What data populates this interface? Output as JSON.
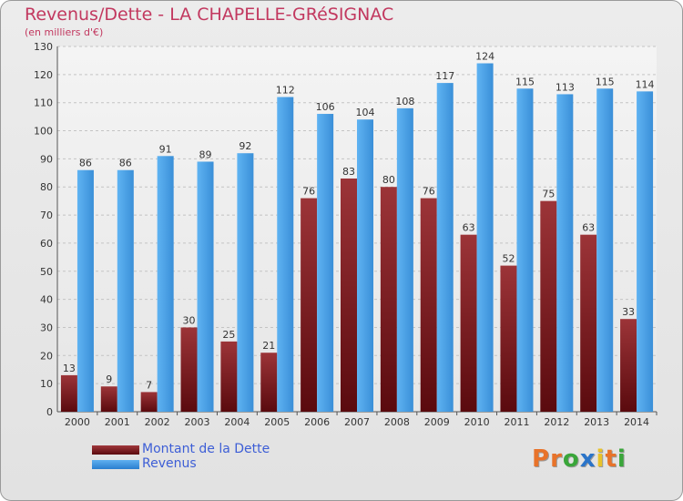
{
  "chart_data": {
    "type": "bar",
    "title": "Revenus/Dette - LA CHAPELLE-GRéSIGNAC",
    "subtitle": "(en milliers d'€)",
    "categories": [
      "2000",
      "2001",
      "2002",
      "2003",
      "2004",
      "2005",
      "2006",
      "2007",
      "2008",
      "2009",
      "2010",
      "2011",
      "2012",
      "2013",
      "2014"
    ],
    "series": [
      {
        "name": "Montant de la Dette",
        "color": "#7a1f23",
        "values": [
          13,
          9,
          7,
          30,
          25,
          21,
          76,
          83,
          80,
          76,
          63,
          52,
          75,
          63,
          33
        ]
      },
      {
        "name": "Revenus",
        "color": "#4a9fe0",
        "values": [
          86,
          86,
          91,
          89,
          92,
          112,
          106,
          104,
          108,
          117,
          124,
          115,
          113,
          115,
          114
        ]
      }
    ],
    "ylim": [
      0,
      130
    ],
    "yticks": [
      0,
      10,
      20,
      30,
      40,
      50,
      60,
      70,
      80,
      90,
      100,
      110,
      120,
      130
    ],
    "grid": true,
    "legend": "bottom-left"
  },
  "branding": {
    "logo_letters": [
      "P",
      "r",
      "o",
      "x",
      "i",
      "t",
      "i"
    ],
    "logo_colors": [
      "#e8732a",
      "#e8732a",
      "#3aa63a",
      "#2a74c9",
      "#e8c22a",
      "#e8732a",
      "#3aa63a"
    ]
  }
}
